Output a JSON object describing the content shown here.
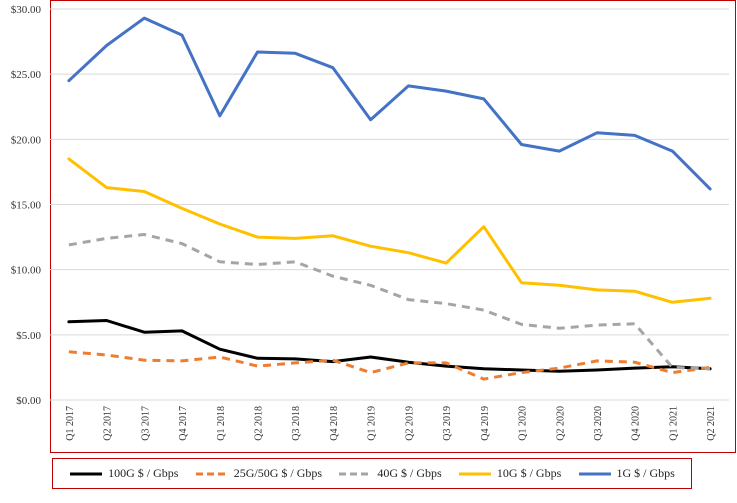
{
  "chart_data": {
    "type": "line",
    "title": "",
    "xlabel": "",
    "ylabel": "",
    "ylim": [
      0,
      30
    ],
    "y_ticks": [
      "$0.00",
      "$5.00",
      "$10.00",
      "$15.00",
      "$20.00",
      "$25.00",
      "$30.00"
    ],
    "grid": "horizontal",
    "legend_position": "bottom",
    "categories": [
      "Q1 2017",
      "Q2 2017",
      "Q3 2017",
      "Q4 2017",
      "Q1 2018",
      "Q2 2018",
      "Q3 2018",
      "Q4 2018",
      "Q1 2019",
      "Q2 2019",
      "Q3 2019",
      "Q4 2019",
      "Q1 2020",
      "Q2 2020",
      "Q3 2020",
      "Q4 2020",
      "Q1 2021",
      "Q2 2021"
    ],
    "series": [
      {
        "name": "100G $ / Gbps",
        "color": "#000000",
        "dash": "solid",
        "values": [
          6.0,
          6.1,
          5.2,
          5.3,
          3.9,
          3.2,
          3.15,
          2.95,
          3.3,
          2.9,
          2.6,
          2.4,
          2.3,
          2.2,
          2.3,
          2.45,
          2.55,
          2.4
        ]
      },
      {
        "name": "25G/50G $ / Gbps",
        "color": "#ed7d31",
        "dash": "dashed",
        "values": [
          3.7,
          3.45,
          3.05,
          3.0,
          3.3,
          2.6,
          2.85,
          3.05,
          2.1,
          2.85,
          2.85,
          1.6,
          2.1,
          2.45,
          3.0,
          2.9,
          2.1,
          2.5
        ]
      },
      {
        "name": "40G $ / Gbps",
        "color": "#a5a5a5",
        "dash": "dashed",
        "values": [
          11.9,
          12.4,
          12.7,
          12.0,
          10.6,
          10.4,
          10.6,
          9.5,
          8.8,
          7.7,
          7.4,
          6.9,
          5.8,
          5.5,
          5.75,
          5.85,
          2.5,
          2.4
        ]
      },
      {
        "name": "10G $ / Gbps",
        "color": "#ffc000",
        "dash": "solid",
        "values": [
          18.5,
          16.3,
          16.0,
          14.7,
          13.5,
          12.5,
          12.4,
          12.6,
          11.8,
          11.3,
          10.5,
          13.3,
          9.0,
          8.8,
          8.45,
          8.35,
          7.5,
          7.8
        ]
      },
      {
        "name": "1G $ / Gbps",
        "color": "#4472c4",
        "dash": "solid",
        "values": [
          24.5,
          27.2,
          29.3,
          28.0,
          21.8,
          26.7,
          26.6,
          25.5,
          21.5,
          24.1,
          23.7,
          23.1,
          19.6,
          19.1,
          20.5,
          20.3,
          19.1,
          16.2
        ]
      }
    ]
  }
}
